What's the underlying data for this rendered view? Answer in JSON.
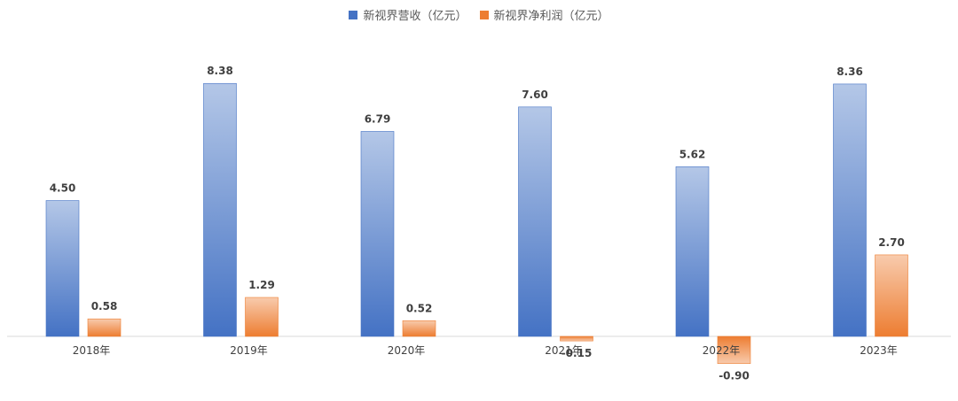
{
  "chart_data": {
    "type": "bar",
    "categories": [
      "2018年",
      "2019年",
      "2020年",
      "2021年",
      "2022年",
      "2023年"
    ],
    "series": [
      {
        "name": "新视界营收（亿元）",
        "values": [
          4.5,
          8.38,
          6.79,
          7.6,
          5.62,
          8.36
        ],
        "labels": [
          "4.50",
          "8.38",
          "6.79",
          "7.60",
          "5.62",
          "8.36"
        ],
        "color": "#4472C4"
      },
      {
        "name": "新视界净利润（亿元）",
        "values": [
          0.58,
          1.29,
          0.52,
          -0.15,
          -0.9,
          2.7
        ],
        "labels": [
          "0.58",
          "1.29",
          "0.52",
          "-0.15",
          "-0.90",
          "2.70"
        ],
        "color": "#ED7D31"
      }
    ],
    "title": "",
    "xlabel": "",
    "ylabel": "",
    "grid": false,
    "legend": "top-center"
  }
}
